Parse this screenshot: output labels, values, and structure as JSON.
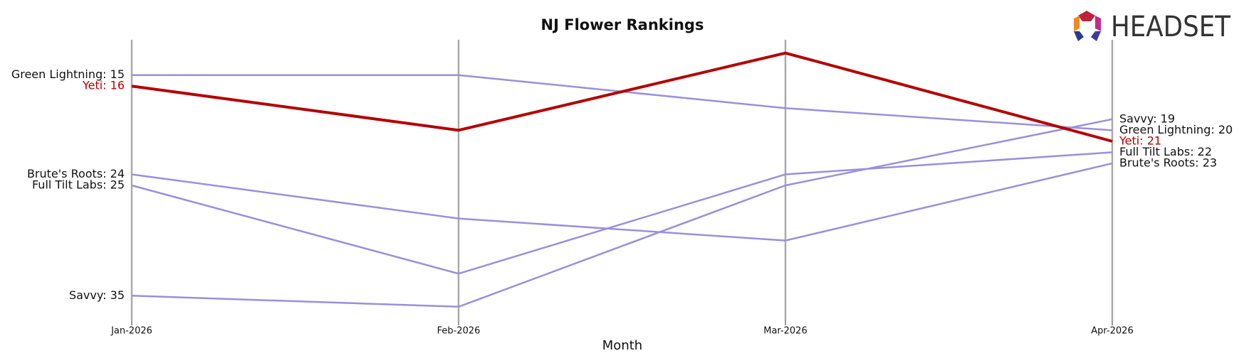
{
  "logo": "HEADSET",
  "chart_data": {
    "type": "line",
    "title": "NJ Flower Rankings",
    "x_label": "Month",
    "categories": [
      "Jan-2026",
      "Feb-2026",
      "Mar-2026",
      "Apr-2026"
    ],
    "ylim": [
      37.3,
      11.8
    ],
    "grid": true,
    "series": [
      {
        "name": "Green Lightning",
        "color": "#9b8fdb",
        "values": [
          15,
          15,
          18,
          20
        ],
        "value_labels": [
          "Green Lightning: 15",
          null,
          null,
          "Green Lightning: 20"
        ]
      },
      {
        "name": "Brute's Roots",
        "color": "#9b8fdb",
        "values": [
          24,
          28,
          30,
          23
        ],
        "value_labels": [
          "Brute's Roots: 24",
          null,
          null,
          "Brute's Roots: 23"
        ]
      },
      {
        "name": "Full Tilt Labs",
        "color": "#9b8fdb",
        "values": [
          25,
          33,
          24,
          22
        ],
        "value_labels": [
          "Full Tilt Labs: 25",
          null,
          null,
          "Full Tilt Labs: 22"
        ]
      },
      {
        "name": "Savvy",
        "color": "#9b8fdb",
        "values": [
          35,
          36,
          25,
          19
        ],
        "value_labels": [
          "Savvy: 35",
          null,
          null,
          "Savvy: 19"
        ]
      },
      {
        "name": "Yeti",
        "color": "#b30000",
        "highlight": true,
        "values": [
          16,
          20,
          13,
          21
        ],
        "value_labels": [
          "Yeti: 16",
          null,
          null,
          "Yeti: 21"
        ]
      }
    ]
  }
}
